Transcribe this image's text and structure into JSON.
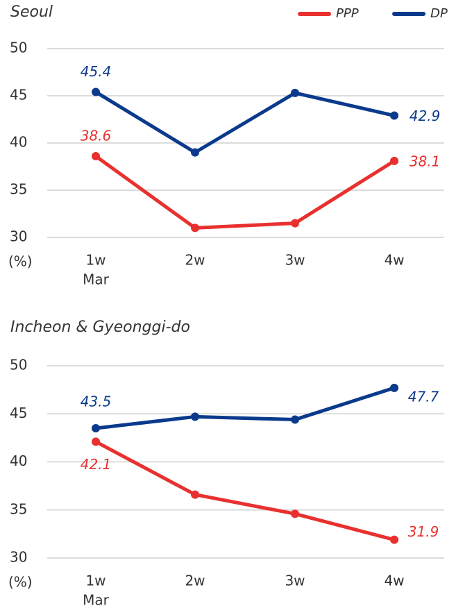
{
  "chart_data": [
    {
      "type": "line",
      "title": "Seoul",
      "legend": "top-right",
      "categories": [
        "1w",
        "2w",
        "3w",
        "4w"
      ],
      "x_note": "Mar",
      "y_unit": "(%)",
      "ylim": [
        30,
        50
      ],
      "yticks": [
        30,
        35,
        40,
        45,
        50
      ],
      "grid": true,
      "series": [
        {
          "name": "PPP",
          "color": "#e8312f",
          "values": [
            38.6,
            31.0,
            31.5,
            38.1
          ]
        },
        {
          "name": "DP",
          "color": "#0a3a8c",
          "values": [
            45.4,
            39.0,
            45.3,
            42.9
          ]
        }
      ]
    },
    {
      "type": "line",
      "title": "Incheon & Gyeonggi-do",
      "categories": [
        "1w",
        "2w",
        "3w",
        "4w"
      ],
      "x_note": "Mar",
      "y_unit": "(%)",
      "ylim": [
        30,
        50
      ],
      "yticks": [
        30,
        35,
        40,
        45,
        50
      ],
      "grid": true,
      "series": [
        {
          "name": "PPP",
          "color": "#e8312f",
          "values": [
            42.1,
            36.6,
            34.6,
            31.9
          ]
        },
        {
          "name": "DP",
          "color": "#0a3a8c",
          "values": [
            43.5,
            44.7,
            44.4,
            47.7
          ]
        }
      ]
    }
  ]
}
